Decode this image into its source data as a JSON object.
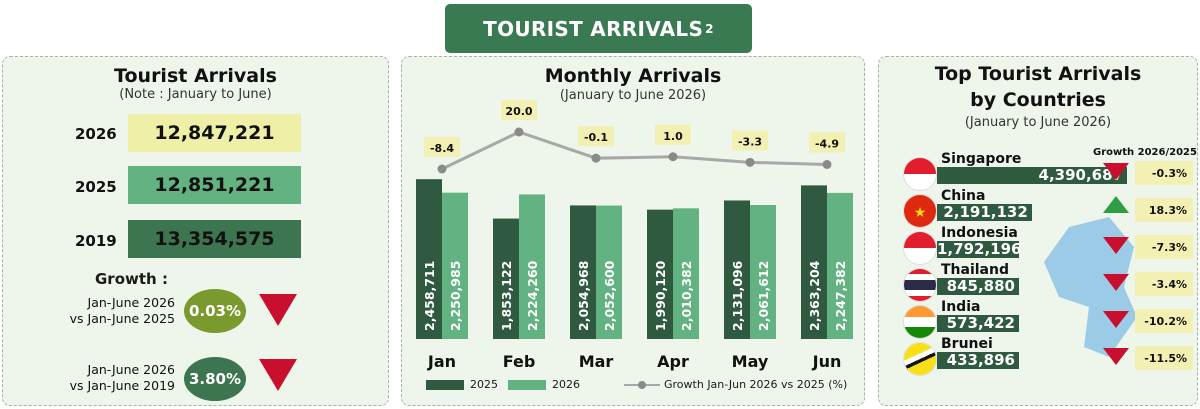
{
  "banner": {
    "title": "TOURIST ARRIVALS",
    "sup": "2"
  },
  "left": {
    "title": "Tourist Arrivals",
    "note": "(Note : January to June)",
    "rows": [
      {
        "year": "2026",
        "value": "12,847,221",
        "color": "#eef0a8"
      },
      {
        "year": "2025",
        "value": "12,851,221",
        "color": "#63b382"
      },
      {
        "year": "2019",
        "value": "13,354,575",
        "color": "#3d7550"
      }
    ],
    "growth_heading": "Growth :",
    "growth": [
      {
        "line1": "Jan-June 2026",
        "line2": "vs Jan-June 2025",
        "value": "0.03%",
        "color": "#7a9a2e",
        "direction": "down"
      },
      {
        "line1": "Jan-June 2026",
        "line2": "vs Jan-June 2019",
        "value": "3.80%",
        "color": "#3d7550",
        "direction": "down"
      }
    ]
  },
  "middle": {
    "title": "Monthly Arrivals",
    "subtitle": "(January to June 2026)",
    "legend": {
      "s2025": "2025",
      "s2026": "2026",
      "line": "Growth Jan-Jun 2026 vs 2025 (%)"
    }
  },
  "chart_data": {
    "type": "bar",
    "categories": [
      "Jan",
      "Feb",
      "Mar",
      "Apr",
      "May",
      "Jun"
    ],
    "series": [
      {
        "name": "2025",
        "values": [
          2458711,
          1853122,
          2054968,
          1990120,
          2131096,
          2363204
        ],
        "labels": [
          "2,458,711",
          "1,853,122",
          "2,054,968",
          "1,990,120",
          "2,131,096",
          "2,363,204"
        ],
        "color": "#2f5a3f"
      },
      {
        "name": "2026",
        "values": [
          2250985,
          2224260,
          2052600,
          2010382,
          2061612,
          2247382
        ],
        "labels": [
          "2,250,985",
          "2,224,260",
          "2,052,600",
          "2,010,382",
          "2,061,612",
          "2,247,382"
        ],
        "color": "#63b382"
      }
    ],
    "line": {
      "name": "Growth Jan-Jun 2026 vs 2025 (%)",
      "values": [
        -8.4,
        20.0,
        -0.1,
        1.0,
        -3.3,
        -4.9
      ],
      "labels": [
        "-8.4",
        "20.0",
        "-0.1",
        "1.0",
        "-3.3",
        "-4.9"
      ],
      "color": "#a8a8a8"
    },
    "legend_position": "bottom"
  },
  "right": {
    "title1": "Top Tourist Arrivals",
    "title2": "by Countries",
    "subtitle": "(January to June 2026)",
    "growth_heading": "Growth 2026/2025",
    "max_value": 4390687,
    "countries": [
      {
        "name": "Singapore",
        "value": "4,390,687",
        "num": 4390687,
        "growth": "-0.3%",
        "direction": "down",
        "flag": "singapore-flag"
      },
      {
        "name": "China",
        "value": "2,191,132",
        "num": 2191132,
        "growth": "18.3%",
        "direction": "up",
        "flag": "china-flag"
      },
      {
        "name": "Indonesia",
        "value": "1,792,196",
        "num": 1792196,
        "growth": "-7.3%",
        "direction": "down",
        "flag": "indonesia-flag"
      },
      {
        "name": "Thailand",
        "value": "845,880",
        "num": 845880,
        "growth": "-3.4%",
        "direction": "down",
        "flag": "thailand-flag"
      },
      {
        "name": "India",
        "value": "573,422",
        "num": 573422,
        "growth": "-10.2%",
        "direction": "down",
        "flag": "india-flag"
      },
      {
        "name": "Brunei",
        "value": "433,896",
        "num": 433896,
        "growth": "-11.5%",
        "direction": "down",
        "flag": "brunei-flag"
      }
    ]
  }
}
